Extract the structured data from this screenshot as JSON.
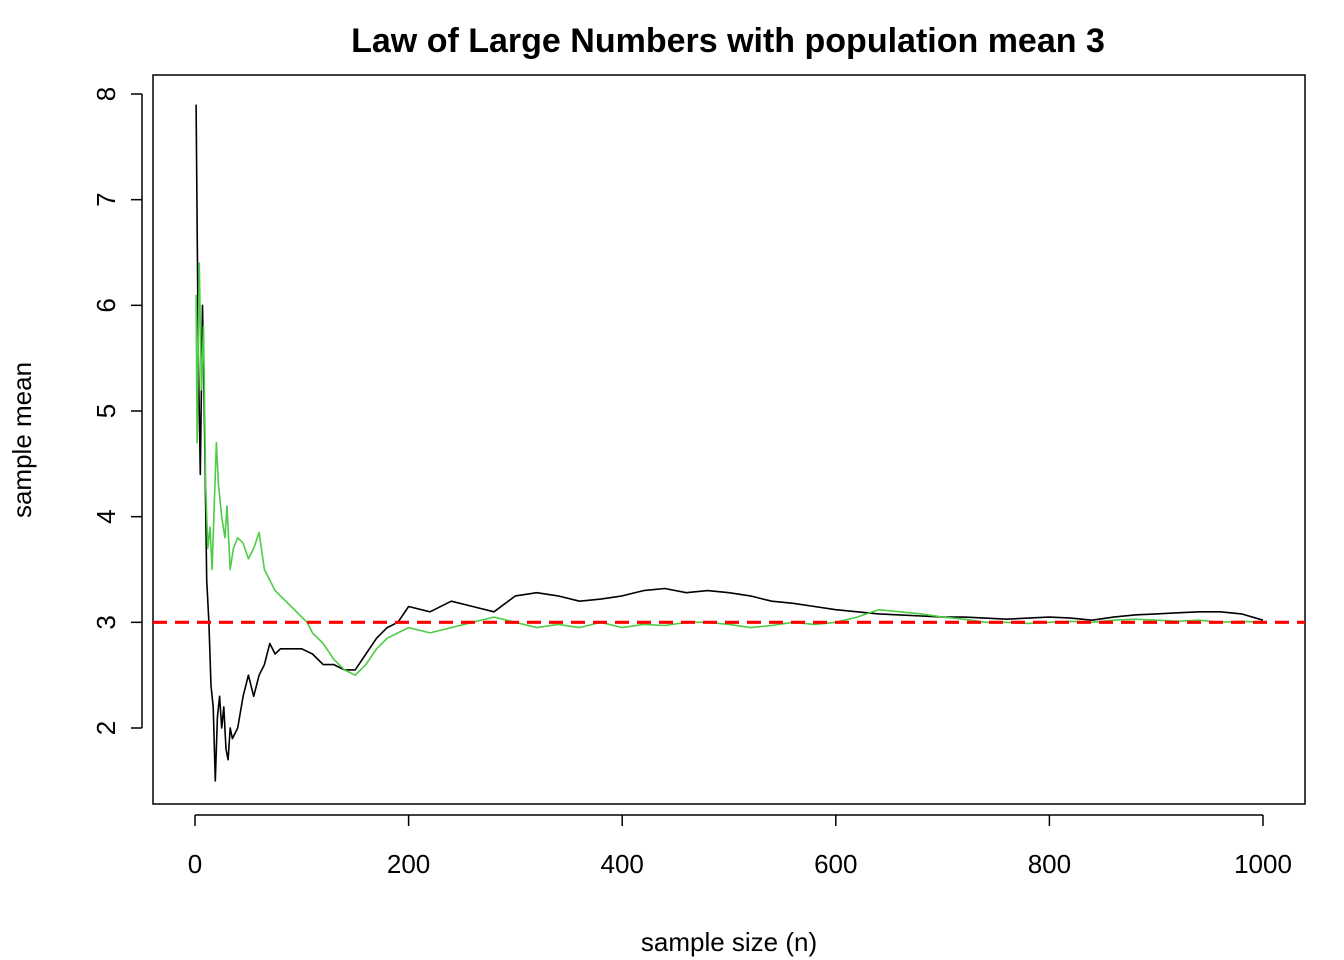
{
  "chart_data": {
    "type": "line",
    "title": "Law of Large Numbers with population mean 3",
    "xlabel": "sample size (n)",
    "ylabel": "sample mean",
    "xlim": [
      0,
      1000
    ],
    "ylim": [
      1.5,
      8
    ],
    "xticks": [
      0,
      200,
      400,
      600,
      800,
      1000
    ],
    "yticks": [
      2,
      3,
      4,
      5,
      6,
      7,
      8
    ],
    "grid": false,
    "reference_line": {
      "y": 3,
      "color": "#ff0000",
      "style": "dashed"
    },
    "series": [
      {
        "color": "#000000",
        "points": [
          [
            1,
            7.9
          ],
          [
            3,
            5.6
          ],
          [
            5,
            4.4
          ],
          [
            7,
            6.0
          ],
          [
            9,
            4.8
          ],
          [
            11,
            3.4
          ],
          [
            13,
            3.0
          ],
          [
            15,
            2.4
          ],
          [
            17,
            2.2
          ],
          [
            19,
            1.5
          ],
          [
            21,
            2.1
          ],
          [
            23,
            2.3
          ],
          [
            25,
            2.0
          ],
          [
            27,
            2.2
          ],
          [
            29,
            1.8
          ],
          [
            31,
            1.7
          ],
          [
            33,
            2.0
          ],
          [
            35,
            1.9
          ],
          [
            40,
            2.0
          ],
          [
            45,
            2.3
          ],
          [
            50,
            2.5
          ],
          [
            55,
            2.3
          ],
          [
            60,
            2.5
          ],
          [
            65,
            2.6
          ],
          [
            70,
            2.8
          ],
          [
            75,
            2.7
          ],
          [
            80,
            2.75
          ],
          [
            90,
            2.75
          ],
          [
            100,
            2.75
          ],
          [
            110,
            2.7
          ],
          [
            120,
            2.6
          ],
          [
            130,
            2.6
          ],
          [
            140,
            2.55
          ],
          [
            150,
            2.55
          ],
          [
            160,
            2.7
          ],
          [
            170,
            2.85
          ],
          [
            180,
            2.95
          ],
          [
            190,
            3.0
          ],
          [
            200,
            3.15
          ],
          [
            220,
            3.1
          ],
          [
            240,
            3.2
          ],
          [
            260,
            3.15
          ],
          [
            280,
            3.1
          ],
          [
            300,
            3.25
          ],
          [
            320,
            3.28
          ],
          [
            340,
            3.25
          ],
          [
            360,
            3.2
          ],
          [
            380,
            3.22
          ],
          [
            400,
            3.25
          ],
          [
            420,
            3.3
          ],
          [
            440,
            3.32
          ],
          [
            460,
            3.28
          ],
          [
            480,
            3.3
          ],
          [
            500,
            3.28
          ],
          [
            520,
            3.25
          ],
          [
            540,
            3.2
          ],
          [
            560,
            3.18
          ],
          [
            580,
            3.15
          ],
          [
            600,
            3.12
          ],
          [
            620,
            3.1
          ],
          [
            640,
            3.08
          ],
          [
            660,
            3.07
          ],
          [
            680,
            3.06
          ],
          [
            700,
            3.05
          ],
          [
            720,
            3.05
          ],
          [
            740,
            3.04
          ],
          [
            760,
            3.03
          ],
          [
            780,
            3.04
          ],
          [
            800,
            3.05
          ],
          [
            820,
            3.04
          ],
          [
            840,
            3.02
          ],
          [
            860,
            3.05
          ],
          [
            880,
            3.07
          ],
          [
            900,
            3.08
          ],
          [
            920,
            3.09
          ],
          [
            940,
            3.1
          ],
          [
            960,
            3.1
          ],
          [
            980,
            3.08
          ],
          [
            1000,
            3.02
          ]
        ]
      },
      {
        "color": "#4ccd45",
        "points": [
          [
            1,
            6.1
          ],
          [
            2,
            4.7
          ],
          [
            4,
            6.4
          ],
          [
            6,
            5.2
          ],
          [
            8,
            5.8
          ],
          [
            10,
            4.3
          ],
          [
            12,
            3.7
          ],
          [
            14,
            3.9
          ],
          [
            16,
            3.5
          ],
          [
            18,
            4.1
          ],
          [
            20,
            4.7
          ],
          [
            22,
            4.3
          ],
          [
            25,
            4.0
          ],
          [
            28,
            3.8
          ],
          [
            30,
            4.1
          ],
          [
            33,
            3.5
          ],
          [
            36,
            3.7
          ],
          [
            40,
            3.8
          ],
          [
            45,
            3.75
          ],
          [
            50,
            3.6
          ],
          [
            55,
            3.7
          ],
          [
            60,
            3.85
          ],
          [
            65,
            3.5
          ],
          [
            70,
            3.4
          ],
          [
            75,
            3.3
          ],
          [
            80,
            3.25
          ],
          [
            85,
            3.2
          ],
          [
            90,
            3.15
          ],
          [
            95,
            3.1
          ],
          [
            100,
            3.05
          ],
          [
            105,
            3.0
          ],
          [
            110,
            2.9
          ],
          [
            120,
            2.8
          ],
          [
            130,
            2.65
          ],
          [
            140,
            2.55
          ],
          [
            150,
            2.5
          ],
          [
            160,
            2.6
          ],
          [
            170,
            2.75
          ],
          [
            180,
            2.85
          ],
          [
            190,
            2.9
          ],
          [
            200,
            2.95
          ],
          [
            220,
            2.9
          ],
          [
            240,
            2.95
          ],
          [
            260,
            3.0
          ],
          [
            280,
            3.05
          ],
          [
            300,
            3.0
          ],
          [
            320,
            2.95
          ],
          [
            340,
            2.98
          ],
          [
            360,
            2.95
          ],
          [
            380,
            3.0
          ],
          [
            400,
            2.95
          ],
          [
            420,
            2.98
          ],
          [
            440,
            2.97
          ],
          [
            460,
            3.0
          ],
          [
            480,
            3.0
          ],
          [
            500,
            2.98
          ],
          [
            520,
            2.95
          ],
          [
            540,
            2.97
          ],
          [
            560,
            3.0
          ],
          [
            580,
            2.98
          ],
          [
            600,
            3.0
          ],
          [
            620,
            3.05
          ],
          [
            640,
            3.12
          ],
          [
            660,
            3.1
          ],
          [
            680,
            3.08
          ],
          [
            700,
            3.05
          ],
          [
            720,
            3.03
          ],
          [
            740,
            3.0
          ],
          [
            760,
            3.0
          ],
          [
            780,
            2.99
          ],
          [
            800,
            3.0
          ],
          [
            820,
            3.01
          ],
          [
            840,
            3.0
          ],
          [
            860,
            3.02
          ],
          [
            880,
            3.03
          ],
          [
            900,
            3.02
          ],
          [
            920,
            3.01
          ],
          [
            940,
            3.02
          ],
          [
            960,
            3.0
          ],
          [
            980,
            3.01
          ],
          [
            1000,
            3.0
          ]
        ]
      }
    ]
  }
}
